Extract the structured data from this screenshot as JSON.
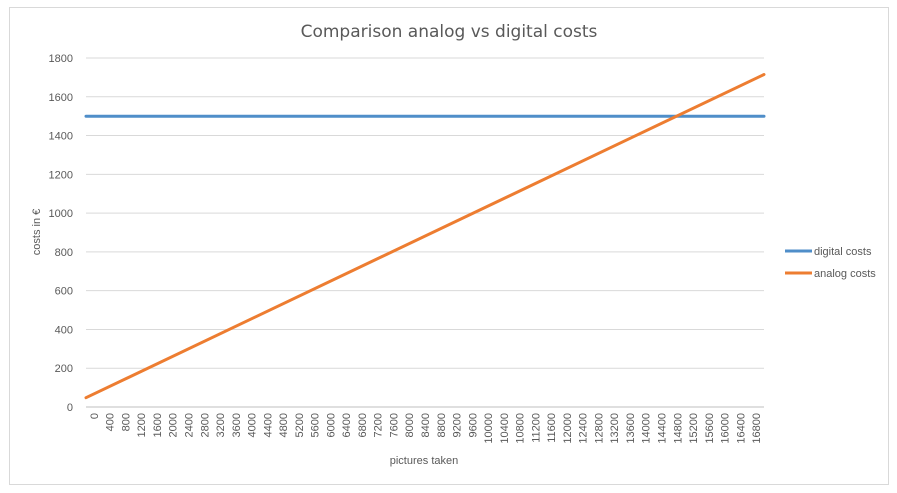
{
  "chart_data": {
    "type": "line",
    "title": "Comparison analog vs digital costs",
    "xlabel": "pictures taken",
    "ylabel": "costs in €",
    "x_tick_labels": [
      "0",
      "400",
      "800",
      "1200",
      "1600",
      "2000",
      "2400",
      "2800",
      "3200",
      "3600",
      "4000",
      "4400",
      "4800",
      "5200",
      "5600",
      "6000",
      "6400",
      "6800",
      "7200",
      "7600",
      "8000",
      "8400",
      "8800",
      "9200",
      "9600",
      "10000",
      "10400",
      "10800",
      "11200",
      "11600",
      "12000",
      "12400",
      "12800",
      "13200",
      "13600",
      "14000",
      "14400",
      "14800",
      "15200",
      "15600",
      "16000",
      "16400",
      "16800"
    ],
    "y_tick_labels": [
      "0",
      "200",
      "400",
      "600",
      "800",
      "1000",
      "1200",
      "1400",
      "1600",
      "1800"
    ],
    "ylim": [
      0,
      1800
    ],
    "xlim": [
      0,
      17000
    ],
    "grid": true,
    "legend_position": "right",
    "series": [
      {
        "name": "digital costs",
        "color": "#4f8ec9",
        "x": [
          0,
          17000
        ],
        "y": [
          1500,
          1500
        ]
      },
      {
        "name": "analog costs",
        "color": "#ed7d31",
        "x": [
          0,
          17000
        ],
        "y": [
          48,
          1715
        ]
      }
    ]
  }
}
